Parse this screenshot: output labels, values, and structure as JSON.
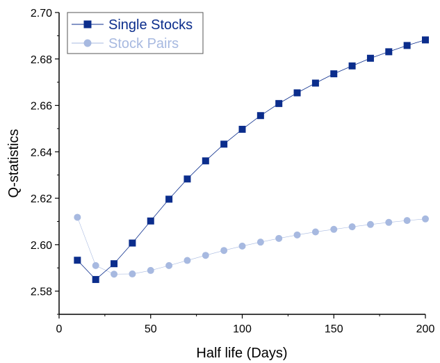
{
  "chart_data": {
    "type": "line",
    "title": "",
    "xlabel": "Half life (Days)",
    "ylabel": "Q-statistics",
    "xlim": [
      0,
      200
    ],
    "ylim": [
      2.57,
      2.7
    ],
    "xticks": [
      0,
      50,
      100,
      150,
      200
    ],
    "yticks": [
      2.58,
      2.6,
      2.62,
      2.64,
      2.66,
      2.68,
      2.7
    ],
    "xtick_labels": [
      "0",
      "50",
      "100",
      "150",
      "200"
    ],
    "ytick_labels": [
      "2.58",
      "2.60",
      "2.62",
      "2.64",
      "2.66",
      "2.68",
      "2.70"
    ],
    "grid": false,
    "legend_position": "top-left",
    "x": [
      10,
      20,
      30,
      40,
      50,
      60,
      70,
      80,
      90,
      100,
      110,
      120,
      130,
      140,
      150,
      160,
      170,
      180,
      190,
      200
    ],
    "series": [
      {
        "name": "Single Stocks",
        "marker": "square",
        "color": "#0b2d8c",
        "values": [
          2.5933,
          2.585,
          2.5918,
          2.6007,
          2.6102,
          2.6196,
          2.6283,
          2.6361,
          2.6433,
          2.6497,
          2.6556,
          2.6608,
          2.6654,
          2.6696,
          2.6736,
          2.677,
          2.6803,
          2.6831,
          2.6858,
          2.6882
        ]
      },
      {
        "name": "Stock Pairs",
        "marker": "circle",
        "color": "#a7b9e0",
        "values": [
          2.6118,
          2.591,
          2.5873,
          2.5874,
          2.5889,
          2.591,
          2.5932,
          2.5954,
          2.5975,
          2.5994,
          2.6011,
          2.6027,
          2.6042,
          2.6055,
          2.6066,
          2.6077,
          2.6087,
          2.6096,
          2.6104,
          2.6111
        ]
      }
    ]
  }
}
